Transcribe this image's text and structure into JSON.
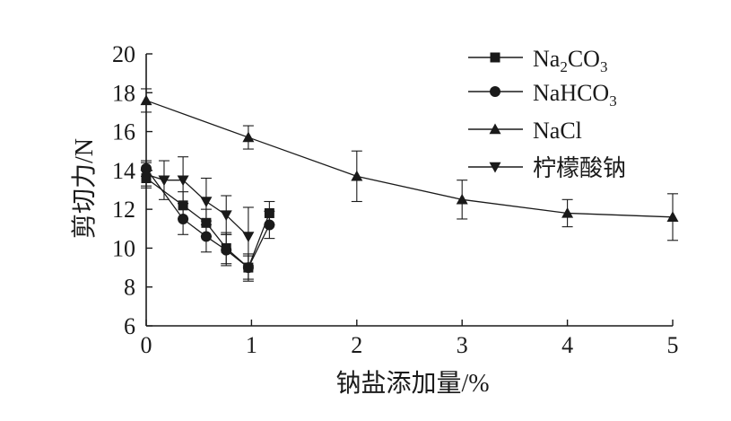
{
  "chart_data": {
    "type": "line",
    "xlabel": "钠盐添加量/%",
    "ylabel": "剪切力/N",
    "xlim": [
      0,
      5
    ],
    "ylim": [
      6,
      20
    ],
    "xticks": [
      0,
      1,
      2,
      3,
      4,
      5
    ],
    "yticks": [
      6,
      8,
      10,
      12,
      14,
      16,
      18,
      20
    ],
    "grid": false,
    "legend_position": "top-right",
    "series": [
      {
        "name": "Na2CO3",
        "marker": "square",
        "points": [
          {
            "x": 0,
            "y": 13.6,
            "err": 0.5
          },
          {
            "x": 0.35,
            "y": 12.2,
            "err": 0.7
          },
          {
            "x": 0.57,
            "y": 11.3,
            "err": 0.7
          },
          {
            "x": 0.76,
            "y": 10.0,
            "err": 0.8
          },
          {
            "x": 0.97,
            "y": 9.0,
            "err": 0.7
          },
          {
            "x": 1.17,
            "y": 11.8,
            "err": 0.6
          }
        ]
      },
      {
        "name": "NaHCO3",
        "marker": "circle",
        "points": [
          {
            "x": 0,
            "y": 14.1,
            "err": 0.4
          },
          {
            "x": 0.35,
            "y": 11.5,
            "err": 0.8
          },
          {
            "x": 0.57,
            "y": 10.6,
            "err": 0.8
          },
          {
            "x": 0.76,
            "y": 9.9,
            "err": 0.8
          },
          {
            "x": 0.97,
            "y": 9.0,
            "err": 0.6
          },
          {
            "x": 1.17,
            "y": 11.2,
            "err": 0.7
          }
        ]
      },
      {
        "name": "NaCl",
        "marker": "triangle-up",
        "points": [
          {
            "x": 0,
            "y": 17.6,
            "err": 0.6
          },
          {
            "x": 0.97,
            "y": 15.7,
            "err": 0.6
          },
          {
            "x": 2,
            "y": 13.7,
            "err": 1.3
          },
          {
            "x": 3,
            "y": 12.5,
            "err": 1.0
          },
          {
            "x": 4,
            "y": 11.8,
            "err": 0.7
          },
          {
            "x": 5,
            "y": 11.6,
            "err": 1.2
          }
        ]
      },
      {
        "name": "柠檬酸钠",
        "marker": "triangle-down",
        "points": [
          {
            "x": 0,
            "y": 13.8,
            "err": 0.6
          },
          {
            "x": 0.17,
            "y": 13.5,
            "err": 1.0
          },
          {
            "x": 0.35,
            "y": 13.5,
            "err": 1.2
          },
          {
            "x": 0.57,
            "y": 12.4,
            "err": 1.2
          },
          {
            "x": 0.76,
            "y": 11.7,
            "err": 1.0
          },
          {
            "x": 0.97,
            "y": 10.6,
            "err": 1.5
          }
        ]
      }
    ]
  },
  "legend": [
    {
      "main": "Na",
      "sub1": "2",
      "mid": "CO",
      "sub2": "3"
    },
    {
      "main": "NaHCO",
      "sub1": "3",
      "mid": "",
      "sub2": ""
    },
    {
      "main": "NaCl",
      "sub1": "",
      "mid": "",
      "sub2": ""
    },
    {
      "main": "柠檬酸钠",
      "sub1": "",
      "mid": "",
      "sub2": ""
    }
  ]
}
